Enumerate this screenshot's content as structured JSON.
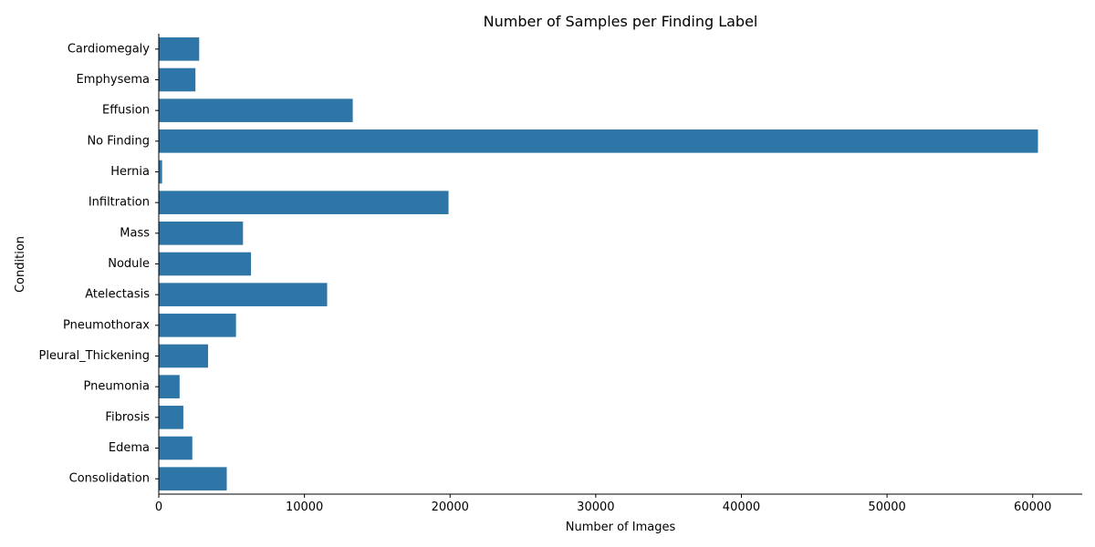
{
  "chart_data": {
    "type": "bar",
    "orientation": "horizontal",
    "title": "Number of Samples per Finding Label",
    "xlabel": "Number of Images",
    "ylabel": "Condition",
    "categories": [
      "Cardiomegaly",
      "Emphysema",
      "Effusion",
      "No Finding",
      "Hernia",
      "Infiltration",
      "Mass",
      "Nodule",
      "Atelectasis",
      "Pneumothorax",
      "Pleural_Thickening",
      "Pneumonia",
      "Fibrosis",
      "Edema",
      "Consolidation"
    ],
    "values": [
      2776,
      2516,
      13317,
      60361,
      227,
      19894,
      5782,
      6331,
      11559,
      5302,
      3385,
      1431,
      1686,
      2303,
      4667
    ],
    "xlim": [
      0,
      63400
    ],
    "xticks": [
      0,
      10000,
      20000,
      30000,
      40000,
      50000,
      60000
    ],
    "xtick_labels": [
      "0",
      "10000",
      "20000",
      "30000",
      "40000",
      "50000",
      "60000"
    ],
    "grid": false,
    "color": "#2e75a8"
  }
}
